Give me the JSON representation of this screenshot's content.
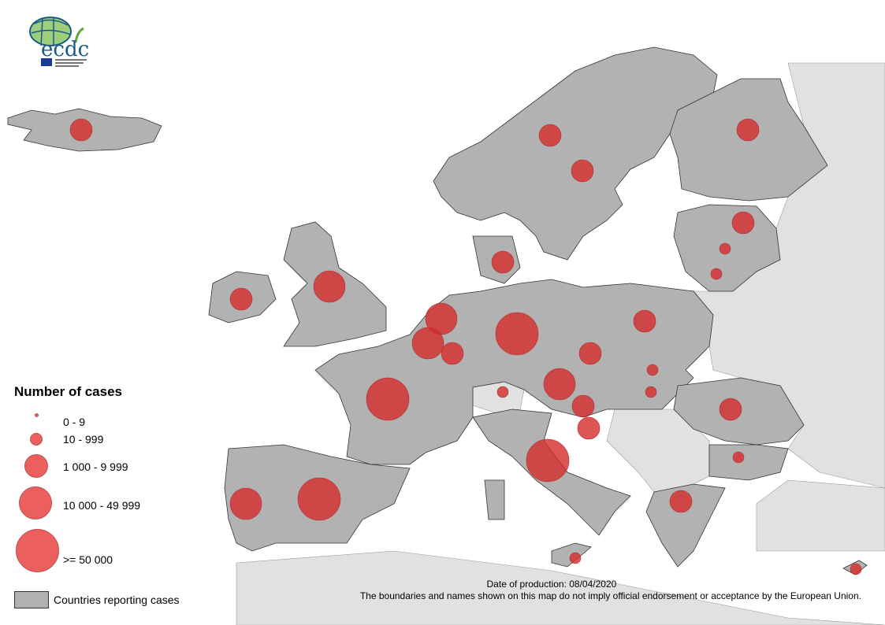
{
  "logo": {
    "text": "ecdc",
    "icon": "ecdc-globe-logo"
  },
  "legend": {
    "title": "Number of cases",
    "classes": [
      {
        "label": "0 - 9"
      },
      {
        "label": "10 - 999"
      },
      {
        "label": "1 000 - 9 999"
      },
      {
        "label": "10 000 - 49 999"
      },
      {
        "label": ">= 50 000"
      }
    ],
    "swatch_label": "Countries reporting cases"
  },
  "footer": {
    "date": "Date of production: 08/04/2020",
    "disclaimer": "The boundaries and names shown on this map do not imply official endorsement or acceptance by the European Union."
  },
  "colors": {
    "reporting": "#b2b2b2",
    "non_reporting": "#e1e1e1",
    "circle": "#d42a2a",
    "water": "#ffffff"
  },
  "case_markers": [
    {
      "class": 2
    },
    {
      "class": 2
    },
    {
      "class": 2
    },
    {
      "class": 2
    },
    {
      "class": 2
    },
    {
      "class": 1
    },
    {
      "class": 1
    },
    {
      "class": 2
    },
    {
      "class": 3
    },
    {
      "class": 2
    },
    {
      "class": 3
    },
    {
      "class": 3
    },
    {
      "class": 2
    },
    {
      "class": 4
    },
    {
      "class": 2
    },
    {
      "class": 2
    },
    {
      "class": 1
    },
    {
      "class": 3
    },
    {
      "class": 1
    },
    {
      "class": 1
    },
    {
      "class": 2
    },
    {
      "class": 2
    },
    {
      "class": 4
    },
    {
      "class": 4
    },
    {
      "class": 4
    },
    {
      "class": 3
    },
    {
      "class": 2
    },
    {
      "class": 1
    },
    {
      "class": 2
    },
    {
      "class": 1
    },
    {
      "class": 1
    }
  ]
}
